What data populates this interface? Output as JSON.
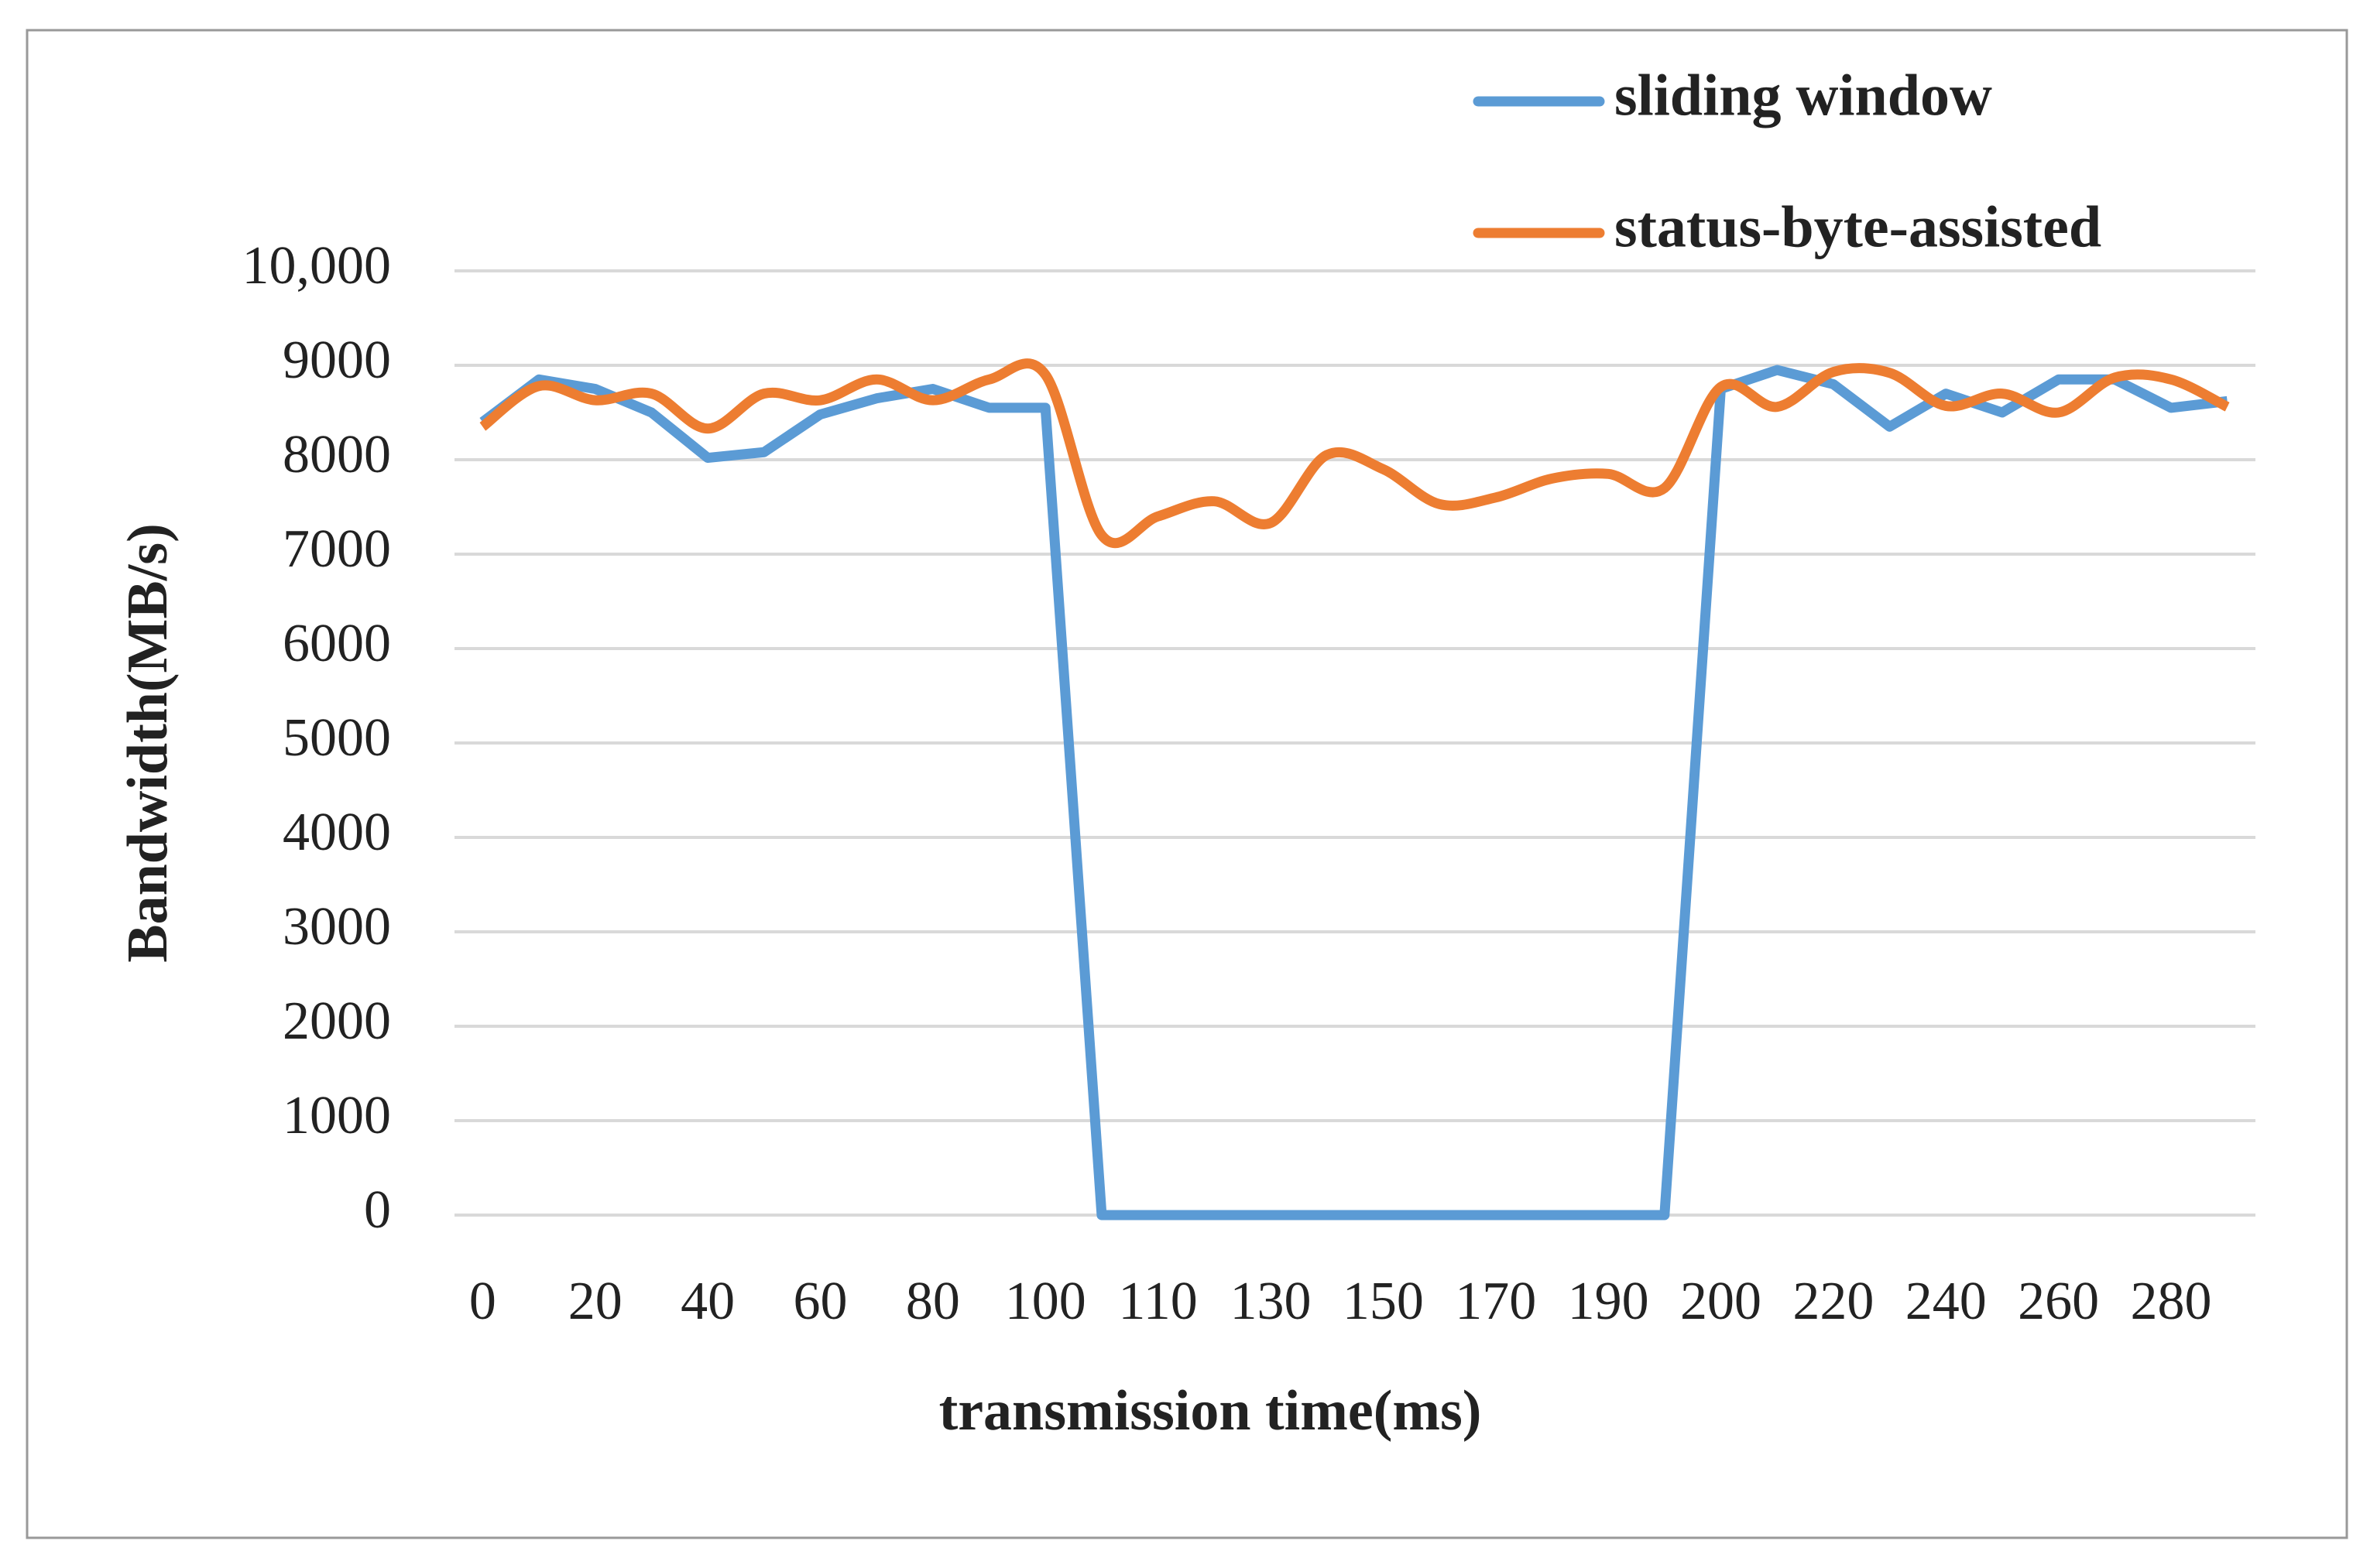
{
  "chart_data": {
    "type": "line",
    "x_label": "transmission time(ms)",
    "y_label": "Bandwidth(MB/s)",
    "categories": [
      "0",
      null,
      "20",
      null,
      "40",
      null,
      "60",
      null,
      "80",
      null,
      "100",
      null,
      "110",
      null,
      "130",
      null,
      "150",
      null,
      "170",
      null,
      "190",
      null,
      "200",
      null,
      "220",
      null,
      "240",
      null,
      "260",
      null,
      "280",
      null
    ],
    "series": [
      {
        "name": "sliding window",
        "color": "#5b9bd5",
        "smooth": false,
        "values": [
          8400,
          8850,
          8750,
          8500,
          8020,
          8080,
          8480,
          8650,
          8750,
          8550,
          8550,
          0,
          0,
          0,
          0,
          0,
          0,
          0,
          0,
          0,
          0,
          0,
          8750,
          8950,
          8800,
          8350,
          8700,
          8500,
          8850,
          8850,
          8550,
          8620
        ]
      },
      {
        "name": "status-byte-assisted",
        "color": "#ed7d31",
        "smooth": true,
        "values": [
          8350,
          8780,
          8630,
          8700,
          8330,
          8700,
          8630,
          8850,
          8630,
          8850,
          8900,
          7200,
          7400,
          7560,
          7330,
          8050,
          7900,
          7530,
          7600,
          7800,
          7850,
          7700,
          8770,
          8560,
          8930,
          8920,
          8570,
          8700,
          8500,
          8870,
          8850,
          8560
        ]
      }
    ],
    "ylim": [
      0,
      10000
    ],
    "yticks": [
      0,
      1000,
      2000,
      3000,
      4000,
      5000,
      6000,
      7000,
      8000,
      9000,
      {
        "value": 10000,
        "label": "10,000"
      }
    ],
    "grid": true,
    "legend": "top-right"
  }
}
